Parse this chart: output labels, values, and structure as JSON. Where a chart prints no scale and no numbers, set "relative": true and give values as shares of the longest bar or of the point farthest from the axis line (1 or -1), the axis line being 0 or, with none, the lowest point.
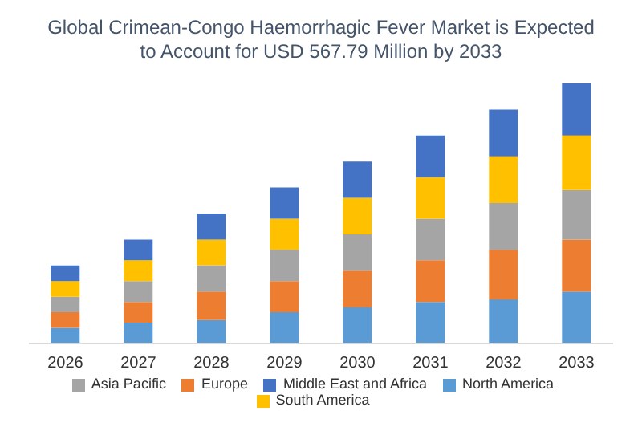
{
  "chart_data": {
    "type": "bar",
    "title": "Global Crimean-Congo Haemorrhagic Fever Market is Expected to Account for USD 567.79 Million by 2033",
    "categories": [
      "2026",
      "2027",
      "2028",
      "2029",
      "2030",
      "2031",
      "2032",
      "2033"
    ],
    "stacked": true,
    "relative": true,
    "legend": "bottom",
    "grid": false,
    "series": [
      {
        "name": "North America",
        "color": "#5b9bd5",
        "values": [
          0.06,
          0.08,
          0.09,
          0.12,
          0.14,
          0.16,
          0.17,
          0.2
        ]
      },
      {
        "name": "Europe",
        "color": "#ed7d31",
        "values": [
          0.06,
          0.08,
          0.11,
          0.12,
          0.14,
          0.16,
          0.19,
          0.2
        ]
      },
      {
        "name": "Asia Pacific",
        "color": "#a5a5a5",
        "values": [
          0.06,
          0.08,
          0.1,
          0.12,
          0.14,
          0.16,
          0.18,
          0.19
        ]
      },
      {
        "name": "South America",
        "color": "#ffc000",
        "values": [
          0.06,
          0.08,
          0.1,
          0.12,
          0.14,
          0.16,
          0.18,
          0.21
        ]
      },
      {
        "name": "Middle East and Africa",
        "color": "#4472c4",
        "values": [
          0.06,
          0.08,
          0.1,
          0.12,
          0.14,
          0.16,
          0.18,
          0.2
        ]
      }
    ]
  }
}
